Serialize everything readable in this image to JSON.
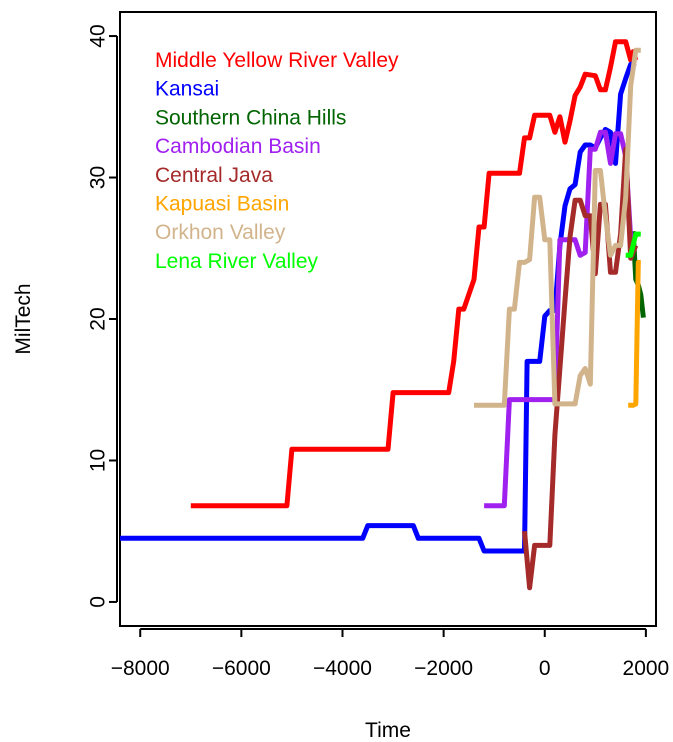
{
  "chart_data": {
    "type": "line",
    "title": "",
    "xlabel": "Time",
    "ylabel": "MilTech",
    "xlim": [
      -8400,
      2200
    ],
    "ylim": [
      -1.7,
      41.7
    ],
    "xticks": [
      -8000,
      -6000,
      -4000,
      -2000,
      0,
      2000
    ],
    "yticks": [
      0,
      10,
      20,
      30,
      40
    ],
    "xtick_labels": [
      "−8000",
      "−6000",
      "−4000",
      "−2000",
      "0",
      "2000"
    ],
    "ytick_labels": [
      "0",
      "10",
      "20",
      "30",
      "40"
    ],
    "grid": false,
    "legend_position": "top-left",
    "series": [
      {
        "name": "Middle Yellow River Valley",
        "color": "#ff0000",
        "x": [
          -7000,
          -5100,
          -5000,
          -3100,
          -3000,
          -1900,
          -1800,
          -1700,
          -1600,
          -1400,
          -1300,
          -1200,
          -1100,
          -1000,
          -900,
          -500,
          -400,
          -300,
          -200,
          100,
          200,
          300,
          400,
          500,
          600,
          700,
          800,
          1000,
          1100,
          1200,
          1300,
          1400,
          1500,
          1600,
          1700,
          1750,
          1800
        ],
        "y": [
          6.8,
          6.8,
          10.8,
          10.8,
          14.8,
          14.8,
          17,
          20.7,
          20.7,
          22.8,
          26.5,
          26.5,
          30.3,
          30.3,
          30.3,
          30.3,
          32.8,
          32.8,
          34.4,
          34.4,
          33.2,
          34.3,
          32.5,
          34,
          35.8,
          36.4,
          37.3,
          37.2,
          36.2,
          36.2,
          37.8,
          39.6,
          39.6,
          39.6,
          38.3,
          38.9,
          38.3
        ]
      },
      {
        "name": "Kansai",
        "color": "#0000ff",
        "x": [
          -8400,
          -3600,
          -3500,
          -2600,
          -2500,
          -1300,
          -1200,
          -400,
          -350,
          -300,
          -100,
          0,
          100,
          200,
          300,
          400,
          500,
          600,
          700,
          800,
          900,
          1000,
          1100,
          1200,
          1300,
          1400,
          1500,
          1600,
          1700,
          1800
        ],
        "y": [
          4.5,
          4.5,
          5.4,
          5.4,
          4.5,
          4.5,
          3.6,
          3.6,
          17,
          17,
          17,
          20.2,
          20.6,
          20.6,
          25.2,
          28,
          29.2,
          29.5,
          31.8,
          32.3,
          32.3,
          32.1,
          32.8,
          33.4,
          33.2,
          31,
          35.9,
          37,
          38,
          38.1
        ]
      },
      {
        "name": "Southern China Hills",
        "color": "#006400",
        "x": [
          1750,
          1800,
          1850,
          1900,
          1950
        ],
        "y": [
          26.2,
          22.8,
          22.4,
          21.7,
          20.1
        ]
      },
      {
        "name": "Cambodian Basin",
        "color": "#a020f0",
        "x": [
          -1200,
          -800,
          -700,
          -600,
          200,
          300,
          600,
          700,
          800,
          900,
          1000,
          1100,
          1200,
          1300,
          1400,
          1500,
          1600,
          1700
        ],
        "y": [
          6.8,
          6.8,
          14.3,
          14.3,
          14.3,
          25.6,
          25.6,
          24.5,
          24.7,
          32,
          32,
          33.2,
          33.2,
          31,
          33.1,
          33.1,
          31.5,
          25.7
        ]
      },
      {
        "name": "Central Java",
        "color": "#a52a2a",
        "x": [
          -400,
          -300,
          -200,
          100,
          200,
          400,
          500,
          600,
          700,
          800,
          900,
          1000,
          1100,
          1200,
          1300,
          1400,
          1500,
          1600,
          1700,
          1800
        ],
        "y": [
          5,
          1,
          4,
          4,
          11.8,
          21.3,
          25.8,
          28.4,
          28.4,
          27.3,
          27.3,
          23.2,
          28.1,
          28.1,
          23.3,
          23.3,
          26,
          32,
          24.3,
          25.2
        ]
      },
      {
        "name": "Kapuasi Basin",
        "color": "#ffa500",
        "x": [
          1650,
          1700,
          1750,
          1800,
          1850,
          1900
        ],
        "y": [
          13.9,
          13.9,
          13.9,
          14,
          24,
          24
        ]
      },
      {
        "name": "Orkhon Valley",
        "color": "#d2b48c",
        "x": [
          -1400,
          -800,
          -700,
          -600,
          -500,
          -400,
          -300,
          -200,
          -100,
          0,
          100,
          200,
          300,
          400,
          500,
          600,
          700,
          800,
          900,
          1000,
          1100,
          1200,
          1300,
          1400,
          1500,
          1600,
          1700,
          1800,
          1900
        ],
        "y": [
          13.9,
          13.9,
          20.7,
          20.7,
          24,
          24,
          24.2,
          28.6,
          28.6,
          25.6,
          25.6,
          14,
          14,
          14,
          14,
          14,
          16,
          16.5,
          15.4,
          30.5,
          30.5,
          27.3,
          24.5,
          25.2,
          25.2,
          28.6,
          36.5,
          39,
          39
        ]
      },
      {
        "name": "Lena River Valley",
        "color": "#00ff00",
        "x": [
          1600,
          1700,
          1800,
          1900
        ],
        "y": [
          24.5,
          24.5,
          26,
          26
        ]
      }
    ]
  }
}
